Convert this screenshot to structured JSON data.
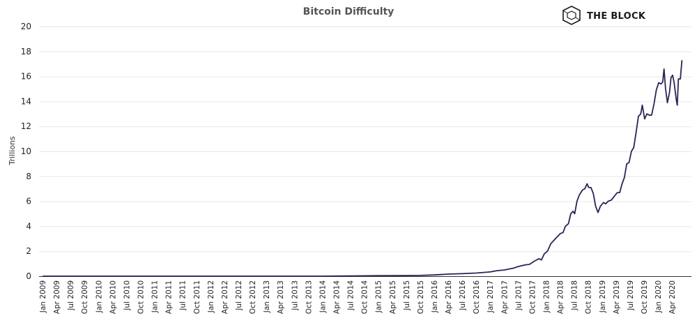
{
  "brand": {
    "name": "THE BLOCK",
    "logo_icon": "cube-logo-icon"
  },
  "colors": {
    "series": "#2b2356",
    "grid": "#e6e6e6",
    "axis": "#333333"
  },
  "chart_data": {
    "type": "line",
    "title": "Bitcoin Difficulty",
    "xlabel": "",
    "ylabel": "Trillions",
    "ylim": [
      0,
      20
    ],
    "yticks": [
      0,
      2,
      4,
      6,
      8,
      10,
      12,
      14,
      16,
      18,
      20
    ],
    "grid": true,
    "legend": "none",
    "xticks": [
      "Jan 2009",
      "Apr 2009",
      "Jul 2009",
      "Oct 2009",
      "Jan 2010",
      "Apr 2010",
      "Jul 2010",
      "Oct 2010",
      "Jan 2011",
      "Apr 2011",
      "Jul 2011",
      "Oct 2011",
      "Jan 2012",
      "Apr 2012",
      "Jul 2012",
      "Oct 2012",
      "Jan 2013",
      "Apr 2013",
      "Jul 2013",
      "Oct 2013",
      "Jan 2014",
      "Apr 2014",
      "Jul 2014",
      "Oct 2014",
      "Jan 2015",
      "Apr 2015",
      "Jul 2015",
      "Oct 2015",
      "Jan 2016",
      "Apr 2016",
      "Jul 2016",
      "Oct 2016",
      "Jan 2017",
      "Apr 2017",
      "Jul 2017",
      "Oct 2017",
      "Jan 2018",
      "Apr 2018",
      "Jul 2018",
      "Oct 2018",
      "Jan 2019",
      "Apr 2019",
      "Jul 2019",
      "Oct 2019",
      "Jan 2020",
      "Apr 2020"
    ],
    "series": [
      {
        "values": [
          [
            "2009-01-01",
            0
          ],
          [
            "2013-01-01",
            3e-06
          ],
          [
            "2014-01-01",
            0.0014
          ],
          [
            "2014-07-01",
            0.017
          ],
          [
            "2015-01-01",
            0.04
          ],
          [
            "2015-07-01",
            0.05
          ],
          [
            "2015-10-01",
            0.06
          ],
          [
            "2016-01-01",
            0.1
          ],
          [
            "2016-04-01",
            0.17
          ],
          [
            "2016-07-01",
            0.2
          ],
          [
            "2016-10-01",
            0.25
          ],
          [
            "2017-01-01",
            0.34
          ],
          [
            "2017-02-15",
            0.44
          ],
          [
            "2017-04-01",
            0.5
          ],
          [
            "2017-06-01",
            0.64
          ],
          [
            "2017-07-01",
            0.77
          ],
          [
            "2017-08-15",
            0.9
          ],
          [
            "2017-09-15",
            0.95
          ],
          [
            "2017-10-15",
            1.2
          ],
          [
            "2017-11-15",
            1.4
          ],
          [
            "2017-12-01",
            1.3
          ],
          [
            "2017-12-20",
            1.8
          ],
          [
            "2018-01-10",
            2.0
          ],
          [
            "2018-02-01",
            2.6
          ],
          [
            "2018-03-01",
            3.0
          ],
          [
            "2018-04-01",
            3.4
          ],
          [
            "2018-04-20",
            3.5
          ],
          [
            "2018-05-05",
            4.0
          ],
          [
            "2018-05-25",
            4.2
          ],
          [
            "2018-06-10",
            5.0
          ],
          [
            "2018-06-25",
            5.2
          ],
          [
            "2018-07-05",
            5.0
          ],
          [
            "2018-07-20",
            6.0
          ],
          [
            "2018-08-05",
            6.5
          ],
          [
            "2018-08-25",
            6.9
          ],
          [
            "2018-09-10",
            7.0
          ],
          [
            "2018-09-25",
            7.4
          ],
          [
            "2018-10-05",
            7.1
          ],
          [
            "2018-10-20",
            7.1
          ],
          [
            "2018-11-05",
            6.6
          ],
          [
            "2018-11-20",
            5.6
          ],
          [
            "2018-12-05",
            5.1
          ],
          [
            "2018-12-20",
            5.6
          ],
          [
            "2019-01-10",
            5.9
          ],
          [
            "2019-01-25",
            5.8
          ],
          [
            "2019-02-10",
            6.0
          ],
          [
            "2019-03-01",
            6.1
          ],
          [
            "2019-03-20",
            6.4
          ],
          [
            "2019-04-10",
            6.7
          ],
          [
            "2019-04-25",
            6.7
          ],
          [
            "2019-05-10",
            7.4
          ],
          [
            "2019-05-25",
            7.9
          ],
          [
            "2019-06-10",
            9.0
          ],
          [
            "2019-06-25",
            9.1
          ],
          [
            "2019-07-10",
            10.0
          ],
          [
            "2019-07-25",
            10.3
          ],
          [
            "2019-08-10",
            11.5
          ],
          [
            "2019-08-25",
            12.8
          ],
          [
            "2019-09-10",
            13.0
          ],
          [
            "2019-09-20",
            13.7
          ],
          [
            "2019-10-05",
            12.6
          ],
          [
            "2019-10-20",
            13.0
          ],
          [
            "2019-11-05",
            12.9
          ],
          [
            "2019-11-20",
            12.9
          ],
          [
            "2019-12-05",
            13.8
          ],
          [
            "2019-12-20",
            14.9
          ],
          [
            "2020-01-05",
            15.5
          ],
          [
            "2020-01-20",
            15.4
          ],
          [
            "2020-02-01",
            15.55
          ],
          [
            "2020-02-10",
            16.6
          ],
          [
            "2020-02-20",
            15.0
          ],
          [
            "2020-03-01",
            13.9
          ],
          [
            "2020-03-15",
            14.7
          ],
          [
            "2020-03-25",
            15.9
          ],
          [
            "2020-04-05",
            16.1
          ],
          [
            "2020-04-15",
            15.5
          ],
          [
            "2020-04-28",
            14.2
          ],
          [
            "2020-05-05",
            13.7
          ],
          [
            "2020-05-12",
            15.8
          ],
          [
            "2020-05-25",
            15.8
          ],
          [
            "2020-06-05",
            17.3
          ]
        ]
      }
    ]
  }
}
